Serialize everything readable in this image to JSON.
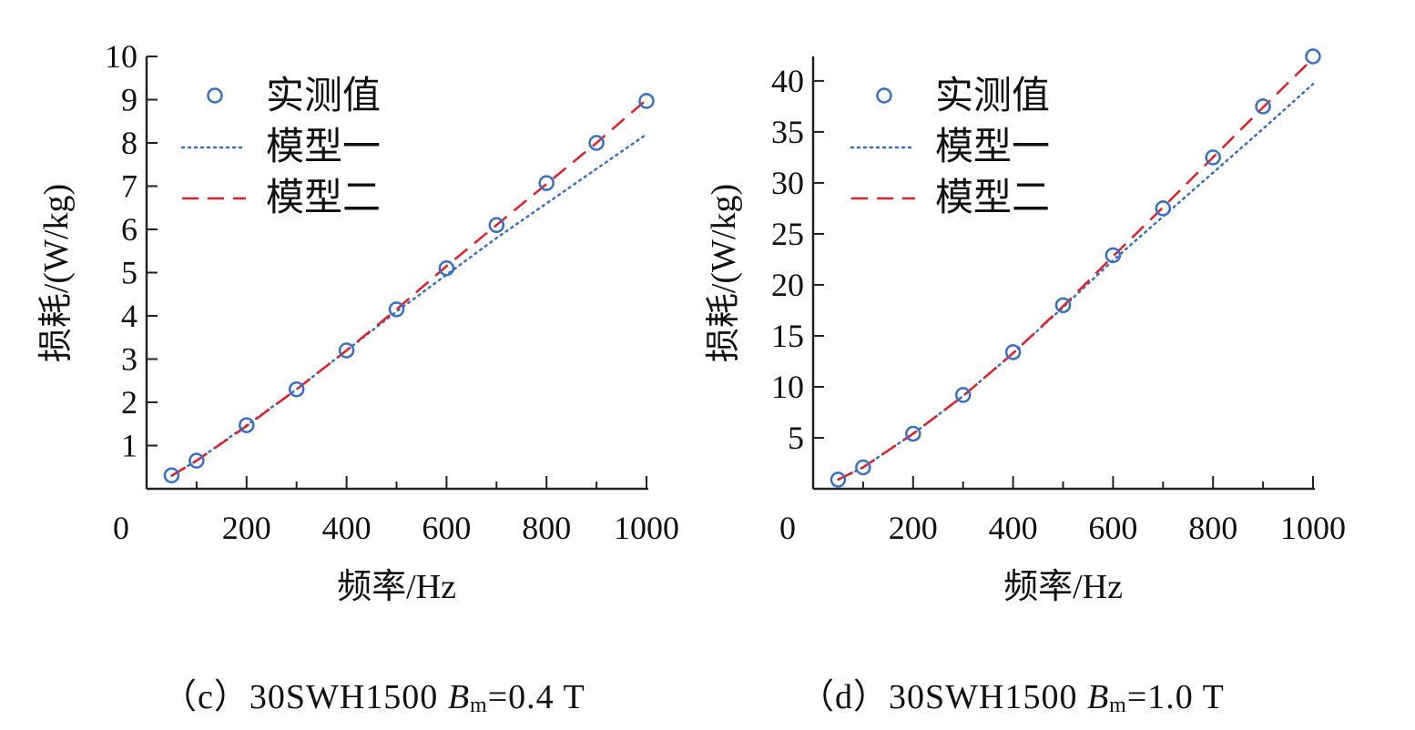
{
  "colors": {
    "measured": "#3a6fc0",
    "model1": "#3a6fc0",
    "model2": "#e0202a",
    "axis": "#222222"
  },
  "chart_data": [
    {
      "type": "line",
      "caption": {
        "prefix": "（c）30SWH1500 ",
        "b": "B",
        "sub": "m",
        "suffix": "=0.4 T"
      },
      "xlabel": "频率/Hz",
      "ylabel": "损耗/(W/kg)",
      "xlim": [
        0,
        1000
      ],
      "ylim": [
        0,
        10
      ],
      "x_ticks": [
        0,
        200,
        400,
        600,
        800,
        1000
      ],
      "y_ticks": [
        1,
        2,
        3,
        4,
        5,
        6,
        7,
        8,
        9,
        10
      ],
      "legend_position": "top-left",
      "x": [
        50,
        100,
        200,
        300,
        400,
        500,
        600,
        700,
        800,
        900,
        1000
      ],
      "series": [
        {
          "name": "实测值",
          "style": "circle-markers",
          "values": [
            0.31,
            0.65,
            1.47,
            2.3,
            3.2,
            4.15,
            5.1,
            6.1,
            7.07,
            8.0,
            8.97
          ]
        },
        {
          "name": "模型一",
          "style": "dotted",
          "values": [
            0.3,
            0.65,
            1.47,
            2.3,
            3.2,
            4.1,
            4.95,
            5.8,
            6.6,
            7.4,
            8.2
          ]
        },
        {
          "name": "模型二",
          "style": "dashed",
          "values": [
            0.3,
            0.65,
            1.45,
            2.3,
            3.2,
            4.15,
            5.15,
            6.1,
            7.05,
            8.0,
            9.0
          ]
        }
      ]
    },
    {
      "type": "line",
      "caption": {
        "prefix": "（d）30SWH1500 ",
        "b": "B",
        "sub": "m",
        "suffix": "=1.0 T"
      },
      "xlabel": "频率/Hz",
      "ylabel": "损耗/(W/kg)",
      "xlim": [
        0,
        1000
      ],
      "ylim": [
        0,
        42.4
      ],
      "x_ticks": [
        0,
        200,
        400,
        600,
        800,
        1000
      ],
      "y_ticks": [
        5,
        10,
        15,
        20,
        25,
        30,
        35,
        40
      ],
      "legend_position": "top-left",
      "x": [
        50,
        100,
        200,
        300,
        400,
        500,
        600,
        700,
        800,
        900,
        1000
      ],
      "series": [
        {
          "name": "实测值",
          "style": "circle-markers",
          "values": [
            0.9,
            2.1,
            5.4,
            9.2,
            13.4,
            18.0,
            22.9,
            27.5,
            32.5,
            37.5,
            42.4
          ]
        },
        {
          "name": "模型一",
          "style": "dotted",
          "values": [
            0.9,
            2.1,
            5.4,
            9.1,
            13.3,
            17.8,
            22.4,
            26.7,
            31.0,
            35.3,
            39.7
          ]
        },
        {
          "name": "模型二",
          "style": "dashed",
          "values": [
            0.9,
            2.1,
            5.4,
            9.1,
            13.3,
            17.9,
            22.8,
            27.6,
            32.5,
            37.4,
            42.2
          ]
        }
      ]
    }
  ]
}
